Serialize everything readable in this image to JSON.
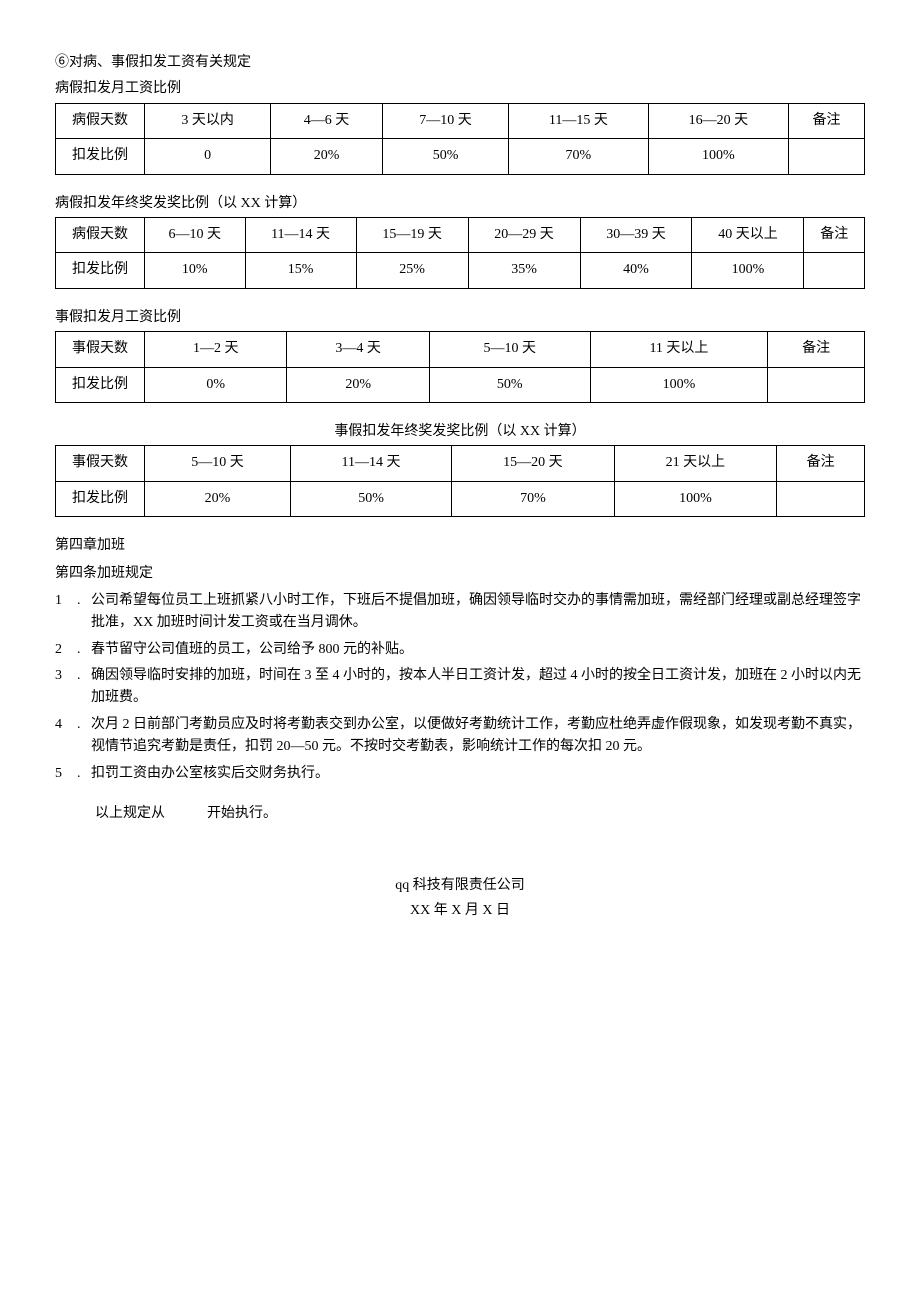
{
  "headings": {
    "line1": "⑥对病、事假扣发工资有关规定",
    "t1_title": "病假扣发月工资比例",
    "t2_title": "病假扣发年终奖发奖比例（以 XX 计算）",
    "t3_title": "事假扣发月工资比例",
    "t4_title": "事假扣发年终奖发奖比例（以 XX 计算）",
    "chapter": "第四章加班",
    "article": "第四条加班规定",
    "effective": "以上规定从　　　开始执行。"
  },
  "labels": {
    "sick_days": "病假天数",
    "personal_days": "事假天数",
    "deduct_ratio": "扣发比例",
    "remark": "备注"
  },
  "table1": {
    "cols": [
      "3 天以内",
      "4—6 天",
      "7—10 天",
      "11—15 天",
      "16—20 天"
    ],
    "vals": [
      "0",
      "20%",
      "50%",
      "70%",
      "100%"
    ]
  },
  "table2": {
    "cols": [
      "6—10 天",
      "11—14 天",
      "15—19 天",
      "20—29 天",
      "30—39 天",
      "40 天以上"
    ],
    "vals": [
      "10%",
      "15%",
      "25%",
      "35%",
      "40%",
      "100%"
    ]
  },
  "table3": {
    "cols": [
      "1—2 天",
      "3—4 天",
      "5—10 天",
      "11 天以上"
    ],
    "vals": [
      "0%",
      "20%",
      "50%",
      "100%"
    ]
  },
  "table4": {
    "cols": [
      "5—10 天",
      "11—14 天",
      "15—20 天",
      "21 天以上"
    ],
    "vals": [
      "20%",
      "50%",
      "70%",
      "100%"
    ]
  },
  "rules": [
    "公司希望每位员工上班抓紧八小时工作，下班后不提倡加班，确因领导临时交办的事情需加班，需经部门经理或副总经理签字批准，XX 加班时间计发工资或在当月调休。",
    "春节留守公司值班的员工，公司给予 800 元的补贴。",
    "确因领导临时安排的加班，时间在 3 至 4 小时的，按本人半日工资计发，超过 4 小时的按全日工资计发，加班在 2 小时以内无加班费。",
    "次月 2 日前部门考勤员应及时将考勤表交到办公室，以便做好考勤统计工作，考勤应杜绝弄虚作假现象，如发现考勤不真实，视情节追究考勤是责任，扣罚 20—50 元。不按时交考勤表，影响统计工作的每次扣 20 元。",
    "扣罚工资由办公室核实后交财务执行。"
  ],
  "signature": {
    "company": "qq 科技有限责任公司",
    "date": "XX 年 X 月 X 日"
  }
}
